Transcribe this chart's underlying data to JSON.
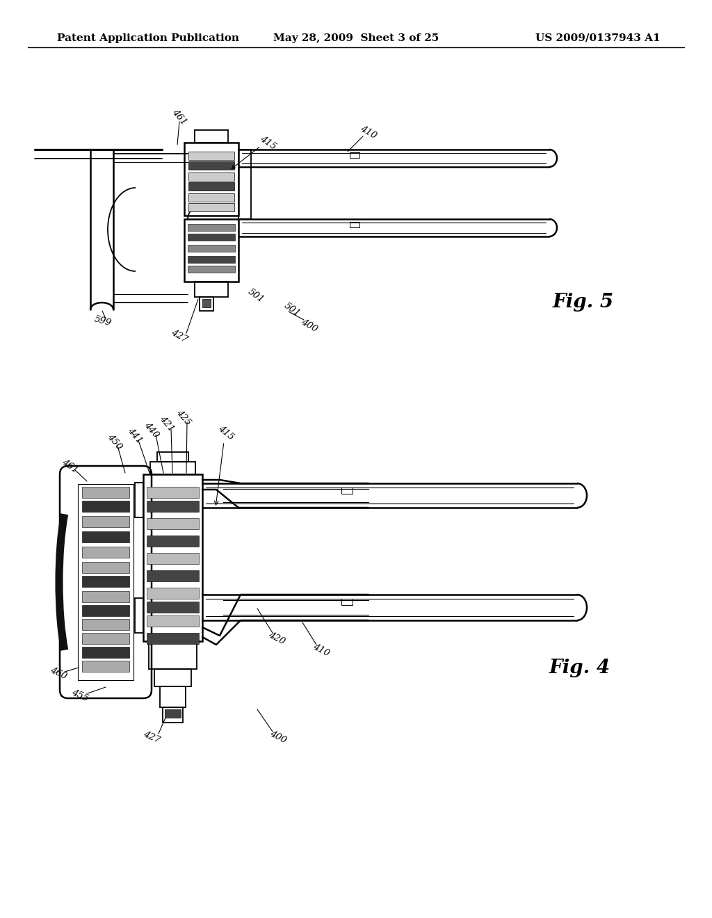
{
  "background_color": "#ffffff",
  "header": {
    "left": "Patent Application Publication",
    "center": "May 28, 2009  Sheet 3 of 25",
    "right": "US 2009/0137943 A1",
    "fontsize": 11
  },
  "line_color": "#000000",
  "annotation_fontsize": 9.5
}
